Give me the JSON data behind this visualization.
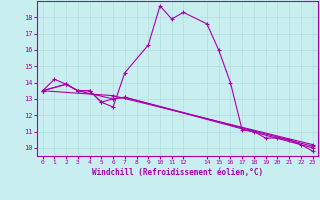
{
  "xlabel": "Windchill (Refroidissement éolien,°C)",
  "background_color": "#c8eef0",
  "grid_color": "#b0dde0",
  "line_color": "#aa00aa",
  "xlim": [
    -0.5,
    23.5
  ],
  "ylim": [
    9.5,
    19.0
  ],
  "xticks": [
    0,
    1,
    2,
    3,
    4,
    5,
    6,
    7,
    8,
    9,
    10,
    11,
    12,
    14,
    15,
    16,
    17,
    18,
    19,
    20,
    21,
    22,
    23
  ],
  "yticks": [
    10,
    11,
    12,
    13,
    14,
    15,
    16,
    17,
    18
  ],
  "series": [
    {
      "x": [
        0,
        1,
        2,
        3,
        4,
        5,
        6,
        7,
        9,
        10,
        11,
        12,
        14,
        15,
        16,
        17,
        18,
        19,
        20,
        21,
        22,
        23
      ],
      "y": [
        13.5,
        14.2,
        13.9,
        13.5,
        13.5,
        12.8,
        12.5,
        14.6,
        16.3,
        18.7,
        17.9,
        18.3,
        17.6,
        16.0,
        14.0,
        11.1,
        11.0,
        10.6,
        10.6,
        10.5,
        10.2,
        9.8
      ]
    },
    {
      "x": [
        0,
        2,
        3,
        4,
        5,
        6,
        7,
        23
      ],
      "y": [
        13.5,
        13.9,
        13.5,
        13.5,
        12.8,
        13.0,
        13.1,
        10.0
      ]
    },
    {
      "x": [
        0,
        2,
        3,
        6,
        7,
        23
      ],
      "y": [
        13.5,
        13.9,
        13.5,
        13.0,
        13.1,
        10.1
      ]
    },
    {
      "x": [
        0,
        6,
        23
      ],
      "y": [
        13.5,
        13.2,
        10.2
      ]
    }
  ]
}
